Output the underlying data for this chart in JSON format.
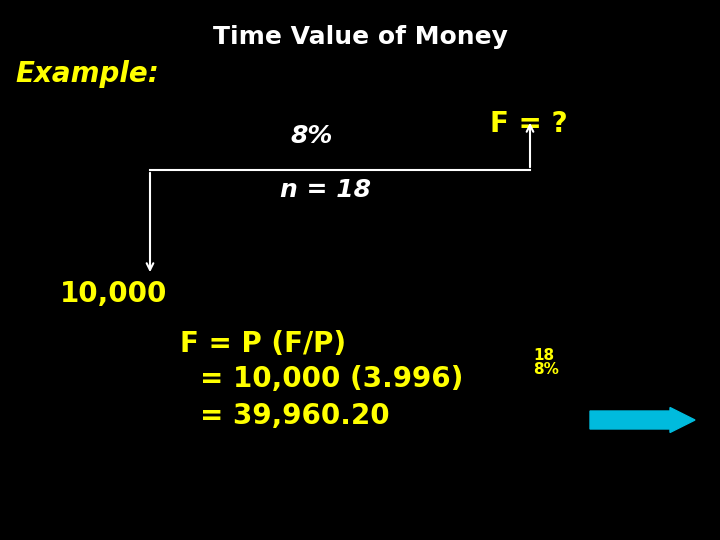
{
  "title": "Time Value of Money",
  "title_color": "#ffffff",
  "title_fontsize": 18,
  "background_color": "#000000",
  "example_label": "Example:",
  "example_color": "#ffff00",
  "example_fontsize": 20,
  "F_label": "F = ?",
  "F_color": "#ffff00",
  "F_fontsize": 20,
  "rate_label": "8%",
  "rate_color": "#ffffff",
  "rate_fontsize": 18,
  "n_label": "n = 18",
  "n_color": "#ffffff",
  "n_fontsize": 18,
  "P_label": "10,000",
  "P_color": "#ffff00",
  "P_fontsize": 20,
  "eq1": "F = P (F/P)",
  "eq1_color": "#ffff00",
  "eq1_fontsize": 20,
  "eq2_prefix": "= 10,000 (3.996)",
  "eq2_super": "8%",
  "eq2_sub": "18",
  "eq2_color": "#ffff00",
  "eq2_fontsize": 20,
  "eq3": "= 39,960.20",
  "eq3_color": "#ffff00",
  "eq3_fontsize": 20,
  "arrow_color": "#00bbdd",
  "line_color": "#ffffff"
}
